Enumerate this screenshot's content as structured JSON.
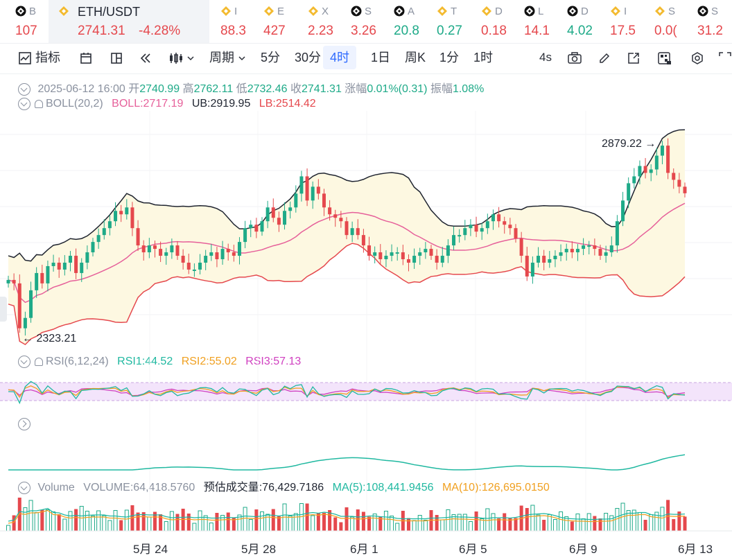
{
  "ticker": [
    {
      "sym": "B",
      "price": "107",
      "color": "red",
      "icon": "exchange-icon"
    },
    {
      "sym": "ETH/USDT",
      "price": "2741.31",
      "pct": "-4.28%",
      "color": "red",
      "icon": "binance-icon",
      "active": true
    },
    {
      "sym": "I",
      "price": "88.3",
      "color": "red",
      "icon": "binance-icon"
    },
    {
      "sym": "E",
      "price": "427",
      "color": "red",
      "icon": "binance-icon"
    },
    {
      "sym": "X",
      "price": "2.23",
      "color": "red",
      "icon": "binance-icon"
    },
    {
      "sym": "S",
      "price": "3.26",
      "color": "red",
      "icon": "exchange-icon"
    },
    {
      "sym": "A",
      "price": "20.8",
      "color": "green",
      "icon": "exchange-icon"
    },
    {
      "sym": "T",
      "price": "0.27",
      "color": "green",
      "icon": "binance-icon"
    },
    {
      "sym": "D",
      "price": "0.18",
      "color": "red",
      "icon": "binance-icon"
    },
    {
      "sym": "L",
      "price": "14.1",
      "color": "red",
      "icon": "exchange-icon"
    },
    {
      "sym": "D",
      "price": "4.02",
      "color": "green",
      "icon": "exchange-icon"
    },
    {
      "sym": "I",
      "price": "17.5",
      "color": "red",
      "icon": "binance-icon"
    },
    {
      "sym": "S",
      "price": "0.0(",
      "color": "red",
      "icon": "binance-icon"
    },
    {
      "sym": "S",
      "price": "31.2",
      "color": "red",
      "icon": "exchange-icon"
    }
  ],
  "toolbar": {
    "indicator_label": "指标",
    "period_label": "周期",
    "intervals": [
      "5分",
      "30分",
      "4时",
      "1日",
      "周K",
      "1分",
      "1时"
    ],
    "selected_interval": "4时",
    "refresh": "4s"
  },
  "ohlc_legend": {
    "datetime": "2025-06-12 16:00",
    "open_label": "开",
    "open": "2740.99",
    "high_label": "高",
    "high": "2762.11",
    "low_label": "低",
    "low": "2732.46",
    "close_label": "收",
    "close": "2741.31",
    "change_label": "涨幅",
    "change": "0.01%(0.31)",
    "amp_label": "振幅",
    "amp": "1.08%"
  },
  "boll_legend": {
    "name": "BOLL(20,2)",
    "mid": "BOLL:2717.19",
    "ub": "UB:2919.95",
    "lb": "LB:2514.42"
  },
  "rsi_legend": {
    "name": "RSI(6,12,24)",
    "rsi1": "RSI1:44.52",
    "rsi2": "RSI2:55.02",
    "rsi3": "RSI3:57.13"
  },
  "volume_legend": {
    "name": "Volume",
    "volume": "VOLUME:64,418.5760",
    "estimate": "预估成交量:76,429.7186",
    "ma5": "MA(5):108,441.9456",
    "ma10": "MA(10):126,695.0150"
  },
  "x_axis": [
    "5月 24",
    "5月 28",
    "6月 1",
    "6月 5",
    "6月 9",
    "6月 13"
  ],
  "colors": {
    "up": "#1eaa88",
    "down": "#e5484d",
    "boll_mid": "#e6609a",
    "boll_band": "#e5484d",
    "boll_up": "#1f2430",
    "rsi1": "#1fb8a0",
    "rsi2": "#f0a020",
    "rsi3": "#d040c0",
    "accent": "#2f6bff"
  },
  "chart_data": {
    "type": "candlestick",
    "symbol": "ETH/USDT",
    "interval": "4h",
    "annotations": {
      "max": 2879.22,
      "min": 2323.21
    },
    "close": [
      2490,
      2480,
      2350,
      2380,
      2460,
      2510,
      2480,
      2530,
      2540,
      2520,
      2540,
      2560,
      2510,
      2540,
      2570,
      2600,
      2620,
      2640,
      2660,
      2690,
      2680,
      2700,
      2640,
      2590,
      2570,
      2590,
      2580,
      2560,
      2570,
      2590,
      2560,
      2540,
      2520,
      2520,
      2540,
      2560,
      2570,
      2550,
      2580,
      2570,
      2560,
      2600,
      2640,
      2650,
      2630,
      2660,
      2700,
      2670,
      2650,
      2690,
      2700,
      2740,
      2790,
      2720,
      2760,
      2740,
      2700,
      2680,
      2670,
      2660,
      2620,
      2640,
      2620,
      2590,
      2560,
      2570,
      2550,
      2560,
      2570,
      2570,
      2550,
      2540,
      2560,
      2570,
      2580,
      2560,
      2540,
      2560,
      2590,
      2620,
      2620,
      2640,
      2650,
      2630,
      2640,
      2660,
      2680,
      2660,
      2650,
      2640,
      2610,
      2560,
      2500,
      2540,
      2560,
      2540,
      2550,
      2560,
      2570,
      2580,
      2570,
      2580,
      2590,
      2590,
      2580,
      2560,
      2570,
      2590,
      2660,
      2720,
      2770,
      2790,
      2820,
      2800,
      2810,
      2850,
      2879,
      2800,
      2780,
      2760,
      2741
    ]
  }
}
